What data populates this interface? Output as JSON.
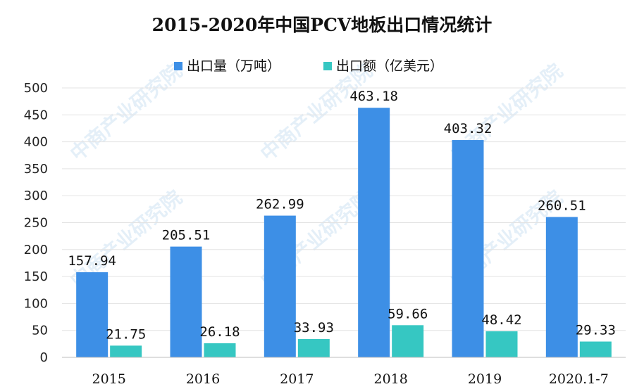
{
  "chart_data": {
    "type": "bar",
    "title": "2015-2020年中国PCV地板出口情况统计",
    "categories": [
      "2015",
      "2016",
      "2017",
      "2018",
      "2019",
      "2020.1-7"
    ],
    "series": [
      {
        "name": "出口量（万吨）",
        "values": [
          157.94,
          205.51,
          262.99,
          463.18,
          403.32,
          260.51
        ],
        "color": "#3d8fe6",
        "labels": [
          "157.94",
          "205.51",
          "262.99",
          "463.18",
          "403.32",
          "260.51"
        ]
      },
      {
        "name": "出口额（亿美元）",
        "values": [
          21.75,
          26.18,
          33.93,
          59.66,
          48.42,
          29.33
        ],
        "color": "#36c7c2",
        "labels": [
          "21.75",
          "26.18",
          "33.93",
          "59.66",
          "48.42",
          "29.33"
        ]
      }
    ],
    "yticks": [
      "0",
      "50",
      "100",
      "150",
      "200",
      "250",
      "300",
      "350",
      "400",
      "450",
      "500"
    ],
    "ylim": [
      0,
      500
    ],
    "grid": true,
    "legend_position": "top-center"
  },
  "watermark": {
    "text": "中商产业研究院"
  }
}
